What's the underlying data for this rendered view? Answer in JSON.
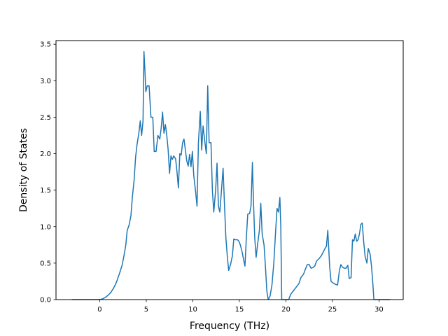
{
  "chart_data": {
    "type": "line",
    "title": "",
    "xlabel": "Frequency (THz)",
    "ylabel": "Density of States",
    "xlim": [
      -4.7,
      32.6
    ],
    "ylim": [
      0.0,
      3.55
    ],
    "xticks": [
      0,
      5,
      10,
      15,
      20,
      25,
      30
    ],
    "yticks": [
      0.0,
      0.5,
      1.0,
      1.5,
      2.0,
      2.5,
      3.0,
      3.5
    ],
    "grid": false,
    "line_color": "#1f77b4",
    "series": [
      {
        "points": [
          [
            -3.0,
            0.0
          ],
          [
            0.0,
            0.0
          ],
          [
            0.3,
            0.01
          ],
          [
            0.6,
            0.03
          ],
          [
            0.9,
            0.06
          ],
          [
            1.2,
            0.1
          ],
          [
            1.5,
            0.16
          ],
          [
            1.8,
            0.24
          ],
          [
            2.1,
            0.35
          ],
          [
            2.4,
            0.47
          ],
          [
            2.6,
            0.6
          ],
          [
            2.8,
            0.75
          ],
          [
            2.95,
            0.95
          ],
          [
            3.15,
            1.02
          ],
          [
            3.35,
            1.15
          ],
          [
            3.5,
            1.4
          ],
          [
            3.7,
            1.65
          ],
          [
            3.85,
            1.95
          ],
          [
            4.0,
            2.12
          ],
          [
            4.2,
            2.28
          ],
          [
            4.35,
            2.45
          ],
          [
            4.5,
            2.25
          ],
          [
            4.65,
            2.45
          ],
          [
            4.75,
            3.4
          ],
          [
            4.85,
            3.15
          ],
          [
            4.95,
            2.85
          ],
          [
            5.1,
            2.93
          ],
          [
            5.3,
            2.93
          ],
          [
            5.5,
            2.5
          ],
          [
            5.7,
            2.5
          ],
          [
            5.85,
            2.03
          ],
          [
            6.05,
            2.03
          ],
          [
            6.25,
            2.25
          ],
          [
            6.45,
            2.2
          ],
          [
            6.6,
            2.35
          ],
          [
            6.75,
            2.57
          ],
          [
            6.9,
            2.28
          ],
          [
            7.05,
            2.4
          ],
          [
            7.2,
            2.25
          ],
          [
            7.35,
            2.05
          ],
          [
            7.5,
            1.73
          ],
          [
            7.65,
            1.97
          ],
          [
            7.8,
            1.92
          ],
          [
            7.95,
            1.97
          ],
          [
            8.15,
            1.93
          ],
          [
            8.3,
            1.75
          ],
          [
            8.45,
            1.53
          ],
          [
            8.6,
            2.0
          ],
          [
            8.75,
            1.98
          ],
          [
            8.9,
            2.15
          ],
          [
            9.05,
            2.2
          ],
          [
            9.2,
            2.05
          ],
          [
            9.35,
            1.9
          ],
          [
            9.5,
            1.83
          ],
          [
            9.65,
            1.99
          ],
          [
            9.8,
            1.82
          ],
          [
            9.95,
            2.03
          ],
          [
            10.1,
            1.7
          ],
          [
            10.3,
            1.48
          ],
          [
            10.45,
            1.28
          ],
          [
            10.6,
            2.15
          ],
          [
            10.8,
            2.58
          ],
          [
            10.95,
            2.05
          ],
          [
            11.1,
            2.38
          ],
          [
            11.3,
            2.15
          ],
          [
            11.45,
            2.0
          ],
          [
            11.6,
            2.93
          ],
          [
            11.75,
            2.15
          ],
          [
            11.95,
            2.15
          ],
          [
            12.1,
            1.5
          ],
          [
            12.25,
            1.2
          ],
          [
            12.45,
            1.5
          ],
          [
            12.6,
            1.87
          ],
          [
            12.75,
            1.28
          ],
          [
            12.9,
            1.2
          ],
          [
            13.05,
            1.45
          ],
          [
            13.25,
            1.8
          ],
          [
            13.4,
            1.3
          ],
          [
            13.55,
            0.85
          ],
          [
            13.7,
            0.6
          ],
          [
            13.85,
            0.4
          ],
          [
            14.05,
            0.48
          ],
          [
            14.25,
            0.6
          ],
          [
            14.4,
            0.83
          ],
          [
            14.6,
            0.82
          ],
          [
            14.8,
            0.82
          ],
          [
            14.95,
            0.8
          ],
          [
            15.1,
            0.75
          ],
          [
            15.3,
            0.65
          ],
          [
            15.45,
            0.55
          ],
          [
            15.6,
            0.46
          ],
          [
            15.75,
            0.85
          ],
          [
            15.9,
            1.17
          ],
          [
            16.1,
            1.18
          ],
          [
            16.25,
            1.28
          ],
          [
            16.4,
            1.88
          ],
          [
            16.5,
            1.4
          ],
          [
            16.65,
            0.85
          ],
          [
            16.8,
            0.58
          ],
          [
            16.95,
            0.75
          ],
          [
            17.15,
            0.95
          ],
          [
            17.3,
            1.32
          ],
          [
            17.45,
            0.9
          ],
          [
            17.65,
            0.75
          ],
          [
            17.8,
            0.45
          ],
          [
            17.95,
            0.12
          ],
          [
            18.1,
            0.0
          ],
          [
            18.3,
            0.05
          ],
          [
            18.5,
            0.2
          ],
          [
            18.7,
            0.5
          ],
          [
            18.9,
            0.95
          ],
          [
            19.05,
            1.25
          ],
          [
            19.2,
            1.2
          ],
          [
            19.35,
            1.4
          ],
          [
            19.45,
            1.0
          ],
          [
            19.55,
            0.0
          ],
          [
            20.3,
            0.0
          ],
          [
            20.5,
            0.07
          ],
          [
            20.8,
            0.12
          ],
          [
            21.1,
            0.17
          ],
          [
            21.4,
            0.22
          ],
          [
            21.6,
            0.3
          ],
          [
            21.9,
            0.35
          ],
          [
            22.1,
            0.42
          ],
          [
            22.3,
            0.48
          ],
          [
            22.5,
            0.48
          ],
          [
            22.7,
            0.43
          ],
          [
            22.9,
            0.44
          ],
          [
            23.1,
            0.46
          ],
          [
            23.3,
            0.53
          ],
          [
            23.55,
            0.56
          ],
          [
            23.8,
            0.6
          ],
          [
            24.0,
            0.65
          ],
          [
            24.2,
            0.7
          ],
          [
            24.35,
            0.73
          ],
          [
            24.5,
            0.95
          ],
          [
            24.6,
            0.7
          ],
          [
            24.7,
            0.45
          ],
          [
            24.85,
            0.25
          ],
          [
            25.05,
            0.23
          ],
          [
            25.3,
            0.21
          ],
          [
            25.55,
            0.2
          ],
          [
            25.75,
            0.4
          ],
          [
            25.9,
            0.48
          ],
          [
            26.05,
            0.45
          ],
          [
            26.25,
            0.43
          ],
          [
            26.45,
            0.43
          ],
          [
            26.65,
            0.47
          ],
          [
            26.8,
            0.29
          ],
          [
            27.0,
            0.3
          ],
          [
            27.15,
            0.82
          ],
          [
            27.3,
            0.8
          ],
          [
            27.45,
            0.9
          ],
          [
            27.6,
            0.8
          ],
          [
            27.75,
            0.82
          ],
          [
            27.9,
            0.9
          ],
          [
            28.05,
            1.03
          ],
          [
            28.2,
            1.05
          ],
          [
            28.35,
            0.8
          ],
          [
            28.5,
            0.6
          ],
          [
            28.7,
            0.5
          ],
          [
            28.85,
            0.7
          ],
          [
            29.05,
            0.62
          ],
          [
            29.2,
            0.45
          ],
          [
            29.35,
            0.2
          ],
          [
            29.45,
            0.0
          ],
          [
            30.5,
            0.0
          ],
          [
            31.2,
            0.0
          ]
        ]
      }
    ]
  }
}
